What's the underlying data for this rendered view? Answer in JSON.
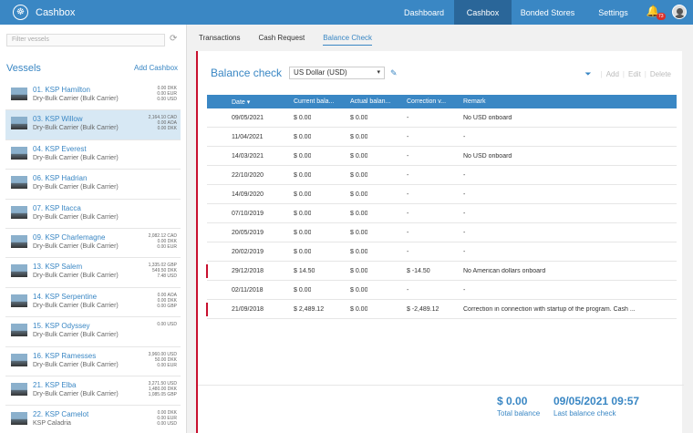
{
  "app": {
    "title": "Cashbox",
    "logo_icon": "ship-wheel-icon"
  },
  "nav": {
    "items": [
      {
        "label": "Dashboard",
        "active": false
      },
      {
        "label": "Cashbox",
        "active": true
      },
      {
        "label": "Bonded Stores",
        "active": false
      },
      {
        "label": "Settings",
        "active": false
      }
    ],
    "notifications": "73"
  },
  "sidebar": {
    "filter_placeholder": "Filter vessels",
    "title": "Vessels",
    "add_label": "Add Cashbox",
    "vessels": [
      {
        "name": "01. KSP Hamilton",
        "type": "Dry-Bulk Carrier (Bulk Carrier)",
        "balances": [
          "0.00 DKK",
          "0.00 EUR",
          "0.00 USD"
        ],
        "selected": false
      },
      {
        "name": "03. KSP Willow",
        "type": "Dry-Bulk Carrier (Bulk Carrier)",
        "balances": [
          "2,164.10 CAD",
          "0.00 AOA",
          "0.00 DKK"
        ],
        "selected": true
      },
      {
        "name": "04. KSP Everest",
        "type": "Dry-Bulk Carrier (Bulk Carrier)",
        "balances": [],
        "selected": false
      },
      {
        "name": "06. KSP Hadrian",
        "type": "Dry-Bulk Carrier (Bulk Carrier)",
        "balances": [],
        "selected": false
      },
      {
        "name": "07. KSP Itacca",
        "type": "Dry-Bulk Carrier (Bulk Carrier)",
        "balances": [],
        "selected": false
      },
      {
        "name": "09. KSP Charlemagne",
        "type": "Dry-Bulk Carrier (Bulk Carrier)",
        "balances": [
          "2,082.12 CAD",
          "0.00 DKK",
          "0.00 EUR"
        ],
        "selected": false
      },
      {
        "name": "13. KSP Salem",
        "type": "Dry-Bulk Carrier (Bulk Carrier)",
        "balances": [
          "1,335.02 GBP",
          "549.50 DKK",
          "7.48 USD"
        ],
        "selected": false
      },
      {
        "name": "14. KSP Serpentine",
        "type": "Dry-Bulk Carrier (Bulk Carrier)",
        "balances": [
          "0.00 AOA",
          "0.00 DKK",
          "0.00 GBP"
        ],
        "selected": false
      },
      {
        "name": "15. KSP Odyssey",
        "type": "Dry-Bulk Carrier (Bulk Carrier)",
        "balances": [
          "0.00 USD"
        ],
        "selected": false
      },
      {
        "name": "16. KSP Ramesses",
        "type": "Dry-Bulk Carrier (Bulk Carrier)",
        "balances": [
          "3,960.00 USD",
          "50.00 DKK",
          "0.00 EUR"
        ],
        "selected": false
      },
      {
        "name": "21. KSP Elba",
        "type": "Dry-Bulk Carrier (Bulk Carrier)",
        "balances": [
          "3,271.50 USD",
          "1,480.00 DKK",
          "1,085.05 GBP"
        ],
        "selected": false
      },
      {
        "name": "22. KSP Camelot",
        "type": "KSP Caladria",
        "balances": [
          "0.00 DKK",
          "0.00 EUR",
          "0.00 USD"
        ],
        "selected": false
      }
    ]
  },
  "tabs": [
    {
      "label": "Transactions",
      "active": false
    },
    {
      "label": "Cash Request",
      "active": false
    },
    {
      "label": "Balance Check",
      "active": true
    }
  ],
  "panel": {
    "title": "Balance check",
    "currency": "US Dollar (USD)",
    "actions": {
      "add": "Add",
      "edit": "Edit",
      "delete": "Delete"
    }
  },
  "table": {
    "headers": [
      "Date ▾",
      "Current bala...",
      "Actual balan...",
      "Correction v...",
      "Remark"
    ],
    "rows": [
      {
        "date": "09/05/2021",
        "current": "$ 0.00",
        "actual": "$ 0.00",
        "correction": "-",
        "remark": "No USD onboard",
        "flag": false
      },
      {
        "date": "11/04/2021",
        "current": "$ 0.00",
        "actual": "$ 0.00",
        "correction": "-",
        "remark": "-",
        "flag": false
      },
      {
        "date": "14/03/2021",
        "current": "$ 0.00",
        "actual": "$ 0.00",
        "correction": "-",
        "remark": "No USD onboard",
        "flag": false
      },
      {
        "date": "22/10/2020",
        "current": "$ 0.00",
        "actual": "$ 0.00",
        "correction": "-",
        "remark": "-",
        "flag": false
      },
      {
        "date": "14/09/2020",
        "current": "$ 0.00",
        "actual": "$ 0.00",
        "correction": "-",
        "remark": "-",
        "flag": false
      },
      {
        "date": "07/10/2019",
        "current": "$ 0.00",
        "actual": "$ 0.00",
        "correction": "-",
        "remark": "-",
        "flag": false
      },
      {
        "date": "20/05/2019",
        "current": "$ 0.00",
        "actual": "$ 0.00",
        "correction": "-",
        "remark": "-",
        "flag": false
      },
      {
        "date": "20/02/2019",
        "current": "$ 0.00",
        "actual": "$ 0.00",
        "correction": "-",
        "remark": "-",
        "flag": false
      },
      {
        "date": "29/12/2018",
        "current": "$ 14.50",
        "actual": "$ 0.00",
        "correction": "$ -14.50",
        "remark": "No American dollars onboard",
        "flag": true
      },
      {
        "date": "02/11/2018",
        "current": "$ 0.00",
        "actual": "$ 0.00",
        "correction": "-",
        "remark": "-",
        "flag": false
      },
      {
        "date": "21/09/2018",
        "current": "$ 2,489.12",
        "actual": "$ 0.00",
        "correction": "$ -2,489.12",
        "remark": "Correction in connection with startup of the program. Cash ...",
        "flag": true
      }
    ]
  },
  "totals": {
    "total_balance": "$ 0.00",
    "total_balance_label": "Total balance",
    "last_check": "09/05/2021 09:57",
    "last_check_label": "Last balance check"
  },
  "colors": {
    "primary": "#3a87c4",
    "nav_active": "#2a6699",
    "flag": "#c8102e"
  }
}
